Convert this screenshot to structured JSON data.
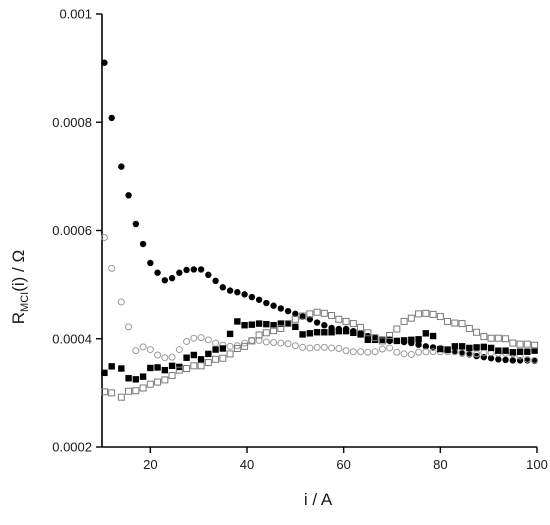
{
  "chart_data": {
    "type": "scatter",
    "title": "",
    "xlabel": "i / A",
    "ylabel_parts": {
      "main": "R",
      "subscript": "MCI",
      "rest": "(i) / Ω"
    },
    "xlim": [
      10,
      100
    ],
    "ylim": [
      0.0002,
      0.001
    ],
    "xticks": [
      20,
      40,
      60,
      80,
      100
    ],
    "xtick_labels": [
      "20",
      "40",
      "60",
      "80",
      "100"
    ],
    "yticks": [
      0.0002,
      0.0004,
      0.0006,
      0.0008,
      0.001
    ],
    "ytick_labels": [
      "0.0002",
      "0.0004",
      "0.0006",
      "0.0008",
      "0.001"
    ],
    "grid": false,
    "legend": "none",
    "series": [
      {
        "marker": "circle-filled",
        "color": "#000000",
        "x": [
          10.5,
          12,
          14,
          15.5,
          17,
          18.5,
          20,
          21.5,
          23,
          24.5,
          26,
          27.5,
          29,
          30.5,
          32,
          33.5,
          35,
          36.5,
          38,
          39.5,
          41,
          42.5,
          44,
          45.5,
          47,
          48.5,
          50,
          51.5,
          53,
          54.5,
          56,
          57.5,
          59,
          60.5,
          62,
          63.5,
          65,
          66.5,
          68,
          69.5,
          71,
          72.5,
          74,
          75.5,
          77,
          78.5,
          80,
          81.5,
          83,
          84.5,
          86,
          87.5,
          89,
          90.5,
          92,
          93.5,
          95,
          96.5,
          98,
          99.5
        ],
        "y": [
          0.00091,
          0.000808,
          0.000718,
          0.000665,
          0.000612,
          0.000575,
          0.00054,
          0.000522,
          0.000508,
          0.000512,
          0.000522,
          0.000527,
          0.000528,
          0.000528,
          0.000518,
          0.000507,
          0.000495,
          0.000489,
          0.000486,
          0.000482,
          0.000477,
          0.000472,
          0.000466,
          0.000461,
          0.000456,
          0.000451,
          0.000446,
          0.000441,
          0.000436,
          0.00043,
          0.000425,
          0.00042,
          0.000418,
          0.000418,
          0.000414,
          0.00041,
          0.000405,
          0.000402,
          0.000398,
          0.000396,
          0.000396,
          0.000394,
          0.000392,
          0.000389,
          0.000386,
          0.000384,
          0.000382,
          0.000379,
          0.000376,
          0.000373,
          0.000371,
          0.000368,
          0.000366,
          0.000364,
          0.000362,
          0.000361,
          0.00036,
          0.00036,
          0.00036,
          0.000359
        ]
      },
      {
        "marker": "circle-open",
        "color": "#9a9a9a",
        "x": [
          10.5,
          12,
          14,
          15.5,
          17,
          18.5,
          20,
          21.5,
          23,
          24.5,
          26,
          27.5,
          29,
          30.5,
          32,
          33.5,
          35,
          36.5,
          38,
          39.5,
          41,
          42.5,
          44,
          45.5,
          47,
          48.5,
          50,
          51.5,
          53,
          54.5,
          56,
          57.5,
          59,
          60.5,
          62,
          63.5,
          65,
          66.5,
          68,
          69.5,
          71,
          72.5,
          74,
          75.5,
          77,
          78.5,
          80,
          81.5,
          83,
          84.5,
          86,
          87.5,
          89,
          90.5,
          92,
          93.5,
          95,
          96.5,
          98,
          99.5
        ],
        "y": [
          0.000587,
          0.00053,
          0.000468,
          0.000422,
          0.000378,
          0.000385,
          0.00038,
          0.00037,
          0.000365,
          0.000366,
          0.00038,
          0.000395,
          0.000401,
          0.000402,
          0.000398,
          0.000392,
          0.000388,
          0.000386,
          0.000387,
          0.000392,
          0.000397,
          0.000397,
          0.000394,
          0.000393,
          0.000392,
          0.000391,
          0.000387,
          0.000384,
          0.000383,
          0.000384,
          0.000384,
          0.000383,
          0.000382,
          0.000378,
          0.000376,
          0.000376,
          0.000375,
          0.000376,
          0.000381,
          0.000383,
          0.000375,
          0.000372,
          0.000371,
          0.000375,
          0.000376,
          0.000376,
          0.000376,
          0.000376,
          0.000376,
          0.000374,
          0.000372,
          0.000372,
          0.000374,
          0.000374,
          0.000373,
          0.000373,
          0.000372,
          0.000368,
          0.000362,
          0.00036
        ]
      },
      {
        "marker": "square-filled",
        "color": "#000000",
        "x": [
          10.5,
          12,
          14,
          15.5,
          17,
          18.5,
          20,
          21.5,
          23,
          24.5,
          26,
          27.5,
          29,
          30.5,
          32,
          33.5,
          35,
          36.5,
          38,
          39.5,
          41,
          42.5,
          44,
          45.5,
          47,
          48.5,
          50,
          51.5,
          53,
          54.5,
          56,
          57.5,
          59,
          60.5,
          62,
          63.5,
          65,
          66.5,
          68,
          69.5,
          71,
          72.5,
          74,
          75.5,
          77,
          78.5,
          80,
          81.5,
          83,
          84.5,
          86,
          87.5,
          89,
          90.5,
          92,
          93.5,
          95,
          96.5,
          98,
          99.5
        ],
        "y": [
          0.000337,
          0.000349,
          0.000345,
          0.000327,
          0.000325,
          0.00033,
          0.000346,
          0.000347,
          0.000342,
          0.00035,
          0.000348,
          0.000365,
          0.00037,
          0.000362,
          0.000372,
          0.00038,
          0.000382,
          0.000409,
          0.000432,
          0.000425,
          0.000426,
          0.000428,
          0.000427,
          0.000425,
          0.000428,
          0.000428,
          0.000422,
          0.000408,
          0.00041,
          0.000412,
          0.000412,
          0.000412,
          0.000414,
          0.000414,
          0.000411,
          0.000408,
          0.000398,
          0.000398,
          0.000398,
          0.000398,
          0.000396,
          0.000397,
          0.000398,
          0.000399,
          0.00041,
          0.000405,
          0.000381,
          0.00038,
          0.000386,
          0.000386,
          0.000383,
          0.000384,
          0.000385,
          0.000383,
          0.000378,
          0.000378,
          0.000375,
          0.000376,
          0.000376,
          0.000378
        ]
      },
      {
        "marker": "square-open",
        "color": "#7a7a7a",
        "x": [
          10.5,
          12,
          14,
          15.5,
          17,
          18.5,
          20,
          21.5,
          23,
          24.5,
          26,
          27.5,
          29,
          30.5,
          32,
          33.5,
          35,
          36.5,
          38,
          39.5,
          41,
          42.5,
          44,
          45.5,
          47,
          48.5,
          50,
          51.5,
          53,
          54.5,
          56,
          57.5,
          59,
          60.5,
          62,
          63.5,
          65,
          66.5,
          68,
          69.5,
          71,
          72.5,
          74,
          75.5,
          77,
          78.5,
          80,
          81.5,
          83,
          84.5,
          86,
          87.5,
          89,
          90.5,
          92,
          93.5,
          95,
          96.5,
          98,
          99.5
        ],
        "y": [
          0.000302,
          0.0003,
          0.000292,
          0.000303,
          0.000304,
          0.000309,
          0.000316,
          0.00032,
          0.000324,
          0.000332,
          0.000342,
          0.000345,
          0.00035,
          0.00035,
          0.000356,
          0.000362,
          0.000364,
          0.000372,
          0.000382,
          0.000386,
          0.000396,
          0.000407,
          0.000411,
          0.000415,
          0.000419,
          0.000428,
          0.000436,
          0.000442,
          0.000446,
          0.000449,
          0.000447,
          0.000443,
          0.000436,
          0.000432,
          0.000428,
          0.000421,
          0.000411,
          0.000402,
          0.000396,
          0.000406,
          0.000418,
          0.000432,
          0.000438,
          0.000446,
          0.000447,
          0.000445,
          0.000441,
          0.000432,
          0.000429,
          0.000428,
          0.000419,
          0.000412,
          0.000404,
          0.000401,
          0.000401,
          0.0004,
          0.000392,
          0.00039,
          0.00039,
          0.000388
        ]
      }
    ]
  }
}
